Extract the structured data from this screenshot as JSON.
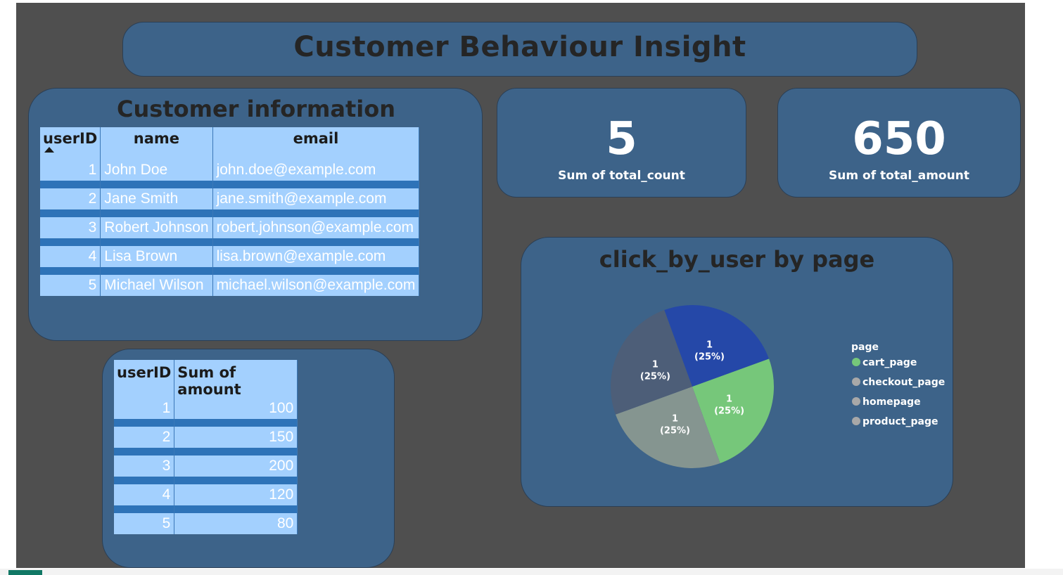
{
  "report_title": "Customer Behaviour Insight",
  "customer_table": {
    "title": "Customer information",
    "columns": [
      "userID",
      "name",
      "email"
    ],
    "rows": [
      {
        "userID": "1",
        "name": "John Doe",
        "email": "john.doe@example.com"
      },
      {
        "userID": "2",
        "name": "Jane Smith",
        "email": "jane.smith@example.com"
      },
      {
        "userID": "3",
        "name": "Robert Johnson",
        "email": "robert.johnson@example.com"
      },
      {
        "userID": "4",
        "name": "Lisa Brown",
        "email": "lisa.brown@example.com"
      },
      {
        "userID": "5",
        "name": "Michael Wilson",
        "email": "michael.wilson@example.com"
      }
    ]
  },
  "amount_table": {
    "columns": [
      "userID",
      "Sum of amount"
    ],
    "rows": [
      {
        "userID": "1",
        "amount": "100"
      },
      {
        "userID": "2",
        "amount": "150"
      },
      {
        "userID": "3",
        "amount": "200"
      },
      {
        "userID": "4",
        "amount": "120"
      },
      {
        "userID": "5",
        "amount": "80"
      }
    ]
  },
  "kpis": [
    {
      "value": "5",
      "label": "Sum of total_count"
    },
    {
      "value": "650",
      "label": "Sum of total_amount"
    }
  ],
  "pie_legend_title": "page",
  "chart_data": {
    "type": "pie",
    "title": "click_by_user by page",
    "categories": [
      "cart_page",
      "checkout_page",
      "homepage",
      "product_page"
    ],
    "values": [
      1,
      1,
      1,
      1
    ],
    "data_labels": [
      {
        "value": "1",
        "pct": "(25%)"
      },
      {
        "value": "1",
        "pct": "(25%)"
      },
      {
        "value": "1",
        "pct": "(25%)"
      },
      {
        "value": "1",
        "pct": "(25%)"
      }
    ],
    "slice_colors": [
      "#76c77a",
      "#859590",
      "#4d5e78",
      "#2548a8"
    ],
    "legend_colors": [
      "#76c77a",
      "#a8a8a8",
      "#a8a8a8",
      "#a8a8a8"
    ],
    "legend_position": "right"
  },
  "colors": {
    "canvas_background": "#4f4f4f",
    "panel": "#3d6389",
    "table_cell": "#a3d0fe",
    "table_separator": "#2e73b8"
  }
}
